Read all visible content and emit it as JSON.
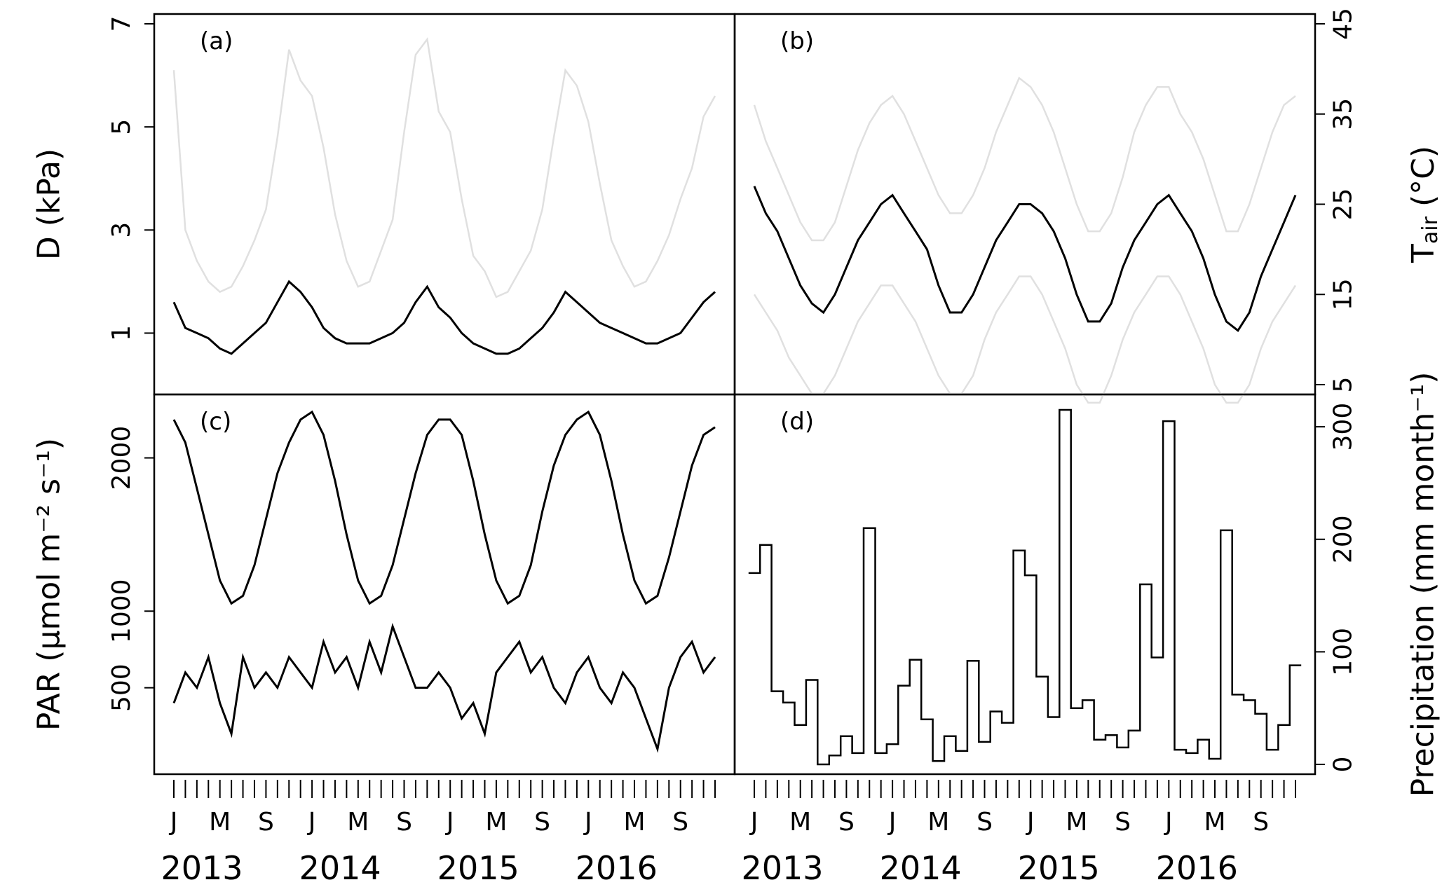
{
  "chart_data": [
    {
      "panel": "a",
      "type": "line",
      "panel_label": "(a)",
      "ylabel": "D (kPa)",
      "ylim": [
        0,
        7
      ],
      "yticks": [
        1,
        3,
        5,
        7
      ],
      "xlim": [
        "2013-01",
        "2016-12"
      ],
      "series": [
        {
          "role": "daily",
          "color": "#e0e0e0",
          "x": [
            "2013-01",
            "2013-02",
            "2013-03",
            "2013-04",
            "2013-05",
            "2013-06",
            "2013-07",
            "2013-08",
            "2013-09",
            "2013-10",
            "2013-11",
            "2013-12",
            "2014-01",
            "2014-02",
            "2014-03",
            "2014-04",
            "2014-05",
            "2014-06",
            "2014-07",
            "2014-08",
            "2014-09",
            "2014-10",
            "2014-11",
            "2014-12",
            "2015-01",
            "2015-02",
            "2015-03",
            "2015-04",
            "2015-05",
            "2015-06",
            "2015-07",
            "2015-08",
            "2015-09",
            "2015-10",
            "2015-11",
            "2015-12",
            "2016-01",
            "2016-02",
            "2016-03",
            "2016-04",
            "2016-05",
            "2016-06",
            "2016-07",
            "2016-08",
            "2016-09",
            "2016-10",
            "2016-11",
            "2016-12"
          ],
          "y": [
            6.1,
            3.0,
            2.4,
            2.0,
            1.8,
            1.9,
            2.3,
            2.8,
            3.4,
            4.8,
            6.5,
            5.9,
            5.6,
            4.6,
            3.3,
            2.4,
            1.9,
            2.0,
            2.6,
            3.2,
            4.9,
            6.4,
            6.7,
            5.3,
            4.9,
            3.6,
            2.5,
            2.2,
            1.7,
            1.8,
            2.2,
            2.6,
            3.4,
            4.8,
            6.1,
            5.8,
            5.1,
            3.9,
            2.8,
            2.3,
            1.9,
            2.0,
            2.4,
            2.9,
            3.6,
            4.2,
            5.2,
            5.6
          ]
        },
        {
          "role": "smoothed",
          "color": "#000000",
          "x": [
            "2013-01",
            "2013-02",
            "2013-03",
            "2013-04",
            "2013-05",
            "2013-06",
            "2013-07",
            "2013-08",
            "2013-09",
            "2013-10",
            "2013-11",
            "2013-12",
            "2014-01",
            "2014-02",
            "2014-03",
            "2014-04",
            "2014-05",
            "2014-06",
            "2014-07",
            "2014-08",
            "2014-09",
            "2014-10",
            "2014-11",
            "2014-12",
            "2015-01",
            "2015-02",
            "2015-03",
            "2015-04",
            "2015-05",
            "2015-06",
            "2015-07",
            "2015-08",
            "2015-09",
            "2015-10",
            "2015-11",
            "2015-12",
            "2016-01",
            "2016-02",
            "2016-03",
            "2016-04",
            "2016-05",
            "2016-06",
            "2016-07",
            "2016-08",
            "2016-09",
            "2016-10",
            "2016-11",
            "2016-12"
          ],
          "y": [
            1.6,
            1.1,
            1.0,
            0.9,
            0.7,
            0.6,
            0.8,
            1.0,
            1.2,
            1.6,
            2.0,
            1.8,
            1.5,
            1.1,
            0.9,
            0.8,
            0.8,
            0.8,
            0.9,
            1.0,
            1.2,
            1.6,
            1.9,
            1.5,
            1.3,
            1.0,
            0.8,
            0.7,
            0.6,
            0.6,
            0.7,
            0.9,
            1.1,
            1.4,
            1.8,
            1.6,
            1.4,
            1.2,
            1.1,
            1.0,
            0.9,
            0.8,
            0.8,
            0.9,
            1.0,
            1.3,
            1.6,
            1.8
          ]
        }
      ]
    },
    {
      "panel": "b",
      "type": "line",
      "panel_label": "(b)",
      "ylabel": "T",
      "ylabel_sub": "air",
      "ylabel_unit": " (°C)",
      "ylim": [
        5,
        45
      ],
      "yticks": [
        5,
        15,
        25,
        35,
        45
      ],
      "xlim": [
        "2013-01",
        "2016-12"
      ],
      "series": [
        {
          "role": "daily_max",
          "color": "#e0e0e0",
          "x": [
            "2013-01",
            "2013-02",
            "2013-03",
            "2013-04",
            "2013-05",
            "2013-06",
            "2013-07",
            "2013-08",
            "2013-09",
            "2013-10",
            "2013-11",
            "2013-12",
            "2014-01",
            "2014-02",
            "2014-03",
            "2014-04",
            "2014-05",
            "2014-06",
            "2014-07",
            "2014-08",
            "2014-09",
            "2014-10",
            "2014-11",
            "2014-12",
            "2015-01",
            "2015-02",
            "2015-03",
            "2015-04",
            "2015-05",
            "2015-06",
            "2015-07",
            "2015-08",
            "2015-09",
            "2015-10",
            "2015-11",
            "2015-12",
            "2016-01",
            "2016-02",
            "2016-03",
            "2016-04",
            "2016-05",
            "2016-06",
            "2016-07",
            "2016-08",
            "2016-09",
            "2016-10",
            "2016-11",
            "2016-12"
          ],
          "y": [
            36,
            32,
            29,
            26,
            23,
            21,
            21,
            23,
            27,
            31,
            34,
            36,
            37,
            35,
            32,
            29,
            26,
            24,
            24,
            26,
            29,
            33,
            36,
            39,
            38,
            36,
            33,
            29,
            25,
            22,
            22,
            24,
            28,
            33,
            36,
            38,
            38,
            35,
            33,
            30,
            26,
            22,
            22,
            25,
            29,
            33,
            36,
            37
          ]
        },
        {
          "role": "daily_min",
          "color": "#e0e0e0",
          "x": [
            "2013-01",
            "2013-02",
            "2013-03",
            "2013-04",
            "2013-05",
            "2013-06",
            "2013-07",
            "2013-08",
            "2013-09",
            "2013-10",
            "2013-11",
            "2013-12",
            "2014-01",
            "2014-02",
            "2014-03",
            "2014-04",
            "2014-05",
            "2014-06",
            "2014-07",
            "2014-08",
            "2014-09",
            "2014-10",
            "2014-11",
            "2014-12",
            "2015-01",
            "2015-02",
            "2015-03",
            "2015-04",
            "2015-05",
            "2015-06",
            "2015-07",
            "2015-08",
            "2015-09",
            "2015-10",
            "2015-11",
            "2015-12",
            "2016-01",
            "2016-02",
            "2016-03",
            "2016-04",
            "2016-05",
            "2016-06",
            "2016-07",
            "2016-08",
            "2016-09",
            "2016-10",
            "2016-11",
            "2016-12"
          ],
          "y": [
            15,
            13,
            11,
            8,
            6,
            4,
            4,
            6,
            9,
            12,
            14,
            16,
            16,
            14,
            12,
            9,
            6,
            4,
            4,
            6,
            10,
            13,
            15,
            17,
            17,
            15,
            12,
            9,
            5,
            3,
            3,
            6,
            10,
            13,
            15,
            17,
            17,
            15,
            12,
            9,
            5,
            3,
            3,
            5,
            9,
            12,
            14,
            16
          ]
        },
        {
          "role": "daily_mean",
          "color": "#000000",
          "x": [
            "2013-01",
            "2013-02",
            "2013-03",
            "2013-04",
            "2013-05",
            "2013-06",
            "2013-07",
            "2013-08",
            "2013-09",
            "2013-10",
            "2013-11",
            "2013-12",
            "2014-01",
            "2014-02",
            "2014-03",
            "2014-04",
            "2014-05",
            "2014-06",
            "2014-07",
            "2014-08",
            "2014-09",
            "2014-10",
            "2014-11",
            "2014-12",
            "2015-01",
            "2015-02",
            "2015-03",
            "2015-04",
            "2015-05",
            "2015-06",
            "2015-07",
            "2015-08",
            "2015-09",
            "2015-10",
            "2015-11",
            "2015-12",
            "2016-01",
            "2016-02",
            "2016-03",
            "2016-04",
            "2016-05",
            "2016-06",
            "2016-07",
            "2016-08",
            "2016-09",
            "2016-10",
            "2016-11",
            "2016-12"
          ],
          "y": [
            27,
            24,
            22,
            19,
            16,
            14,
            13,
            15,
            18,
            21,
            23,
            25,
            26,
            24,
            22,
            20,
            16,
            13,
            13,
            15,
            18,
            21,
            23,
            25,
            25,
            24,
            22,
            19,
            15,
            12,
            12,
            14,
            18,
            21,
            23,
            25,
            26,
            24,
            22,
            19,
            15,
            12,
            11,
            13,
            17,
            20,
            23,
            26
          ]
        }
      ]
    },
    {
      "panel": "c",
      "type": "line",
      "panel_label": "(c)",
      "ylabel_main": "PAR (",
      "ylabel_unit": "μmol m⁻² s⁻¹)",
      "ylim": [
        0,
        2350
      ],
      "yticks": [
        500,
        1000,
        2000
      ],
      "xlim": [
        "2013-01",
        "2016-12"
      ],
      "series": [
        {
          "role": "daily_envelope",
          "color": "#000000",
          "x": [
            "2013-01",
            "2013-02",
            "2013-03",
            "2013-04",
            "2013-05",
            "2013-06",
            "2013-07",
            "2013-08",
            "2013-09",
            "2013-10",
            "2013-11",
            "2013-12",
            "2014-01",
            "2014-02",
            "2014-03",
            "2014-04",
            "2014-05",
            "2014-06",
            "2014-07",
            "2014-08",
            "2014-09",
            "2014-10",
            "2014-11",
            "2014-12",
            "2015-01",
            "2015-02",
            "2015-03",
            "2015-04",
            "2015-05",
            "2015-06",
            "2015-07",
            "2015-08",
            "2015-09",
            "2015-10",
            "2015-11",
            "2015-12",
            "2016-01",
            "2016-02",
            "2016-03",
            "2016-04",
            "2016-05",
            "2016-06",
            "2016-07",
            "2016-08",
            "2016-09",
            "2016-10",
            "2016-11",
            "2016-12"
          ],
          "y": [
            2250,
            2100,
            1800,
            1500,
            1200,
            1050,
            1100,
            1300,
            1600,
            1900,
            2100,
            2250,
            2300,
            2150,
            1850,
            1500,
            1200,
            1050,
            1100,
            1300,
            1600,
            1900,
            2150,
            2250,
            2250,
            2150,
            1850,
            1500,
            1200,
            1050,
            1100,
            1300,
            1650,
            1950,
            2150,
            2250,
            2300,
            2150,
            1850,
            1500,
            1200,
            1050,
            1100,
            1350,
            1650,
            1950,
            2150,
            2200
          ]
        },
        {
          "role": "cloudy_minima",
          "color": "#000000",
          "x": [
            "2013-01",
            "2013-02",
            "2013-03",
            "2013-04",
            "2013-05",
            "2013-06",
            "2013-07",
            "2013-08",
            "2013-09",
            "2013-10",
            "2013-11",
            "2013-12",
            "2014-01",
            "2014-02",
            "2014-03",
            "2014-04",
            "2014-05",
            "2014-06",
            "2014-07",
            "2014-08",
            "2014-09",
            "2014-10",
            "2014-11",
            "2014-12",
            "2015-01",
            "2015-02",
            "2015-03",
            "2015-04",
            "2015-05",
            "2015-06",
            "2015-07",
            "2015-08",
            "2015-09",
            "2015-10",
            "2015-11",
            "2015-12",
            "2016-01",
            "2016-02",
            "2016-03",
            "2016-04",
            "2016-05",
            "2016-06",
            "2016-07",
            "2016-08",
            "2016-09",
            "2016-10",
            "2016-11",
            "2016-12"
          ],
          "y": [
            400,
            600,
            500,
            700,
            400,
            200,
            700,
            500,
            600,
            500,
            700,
            600,
            500,
            800,
            600,
            700,
            500,
            800,
            600,
            900,
            700,
            500,
            500,
            600,
            500,
            300,
            400,
            200,
            600,
            700,
            800,
            600,
            700,
            500,
            400,
            600,
            700,
            500,
            400,
            600,
            500,
            300,
            100,
            500,
            700,
            800,
            600,
            700
          ]
        }
      ]
    },
    {
      "panel": "d",
      "type": "step",
      "panel_label": "(d)",
      "ylabel_main": "Precipitation (",
      "ylabel_unit": "mm month⁻¹)",
      "ylim": [
        0,
        320
      ],
      "yticks": [
        0,
        100,
        200,
        300
      ],
      "xlim": [
        "2013-01",
        "2016-12"
      ],
      "series": [
        {
          "role": "monthly",
          "color": "#000000",
          "x": [
            "2013-01",
            "2013-02",
            "2013-03",
            "2013-04",
            "2013-05",
            "2013-06",
            "2013-07",
            "2013-08",
            "2013-09",
            "2013-10",
            "2013-11",
            "2013-12",
            "2014-01",
            "2014-02",
            "2014-03",
            "2014-04",
            "2014-05",
            "2014-06",
            "2014-07",
            "2014-08",
            "2014-09",
            "2014-10",
            "2014-11",
            "2014-12",
            "2015-01",
            "2015-02",
            "2015-03",
            "2015-04",
            "2015-05",
            "2015-06",
            "2015-07",
            "2015-08",
            "2015-09",
            "2015-10",
            "2015-11",
            "2015-12",
            "2016-01",
            "2016-02",
            "2016-03",
            "2016-04",
            "2016-05",
            "2016-06",
            "2016-07",
            "2016-08",
            "2016-09",
            "2016-10",
            "2016-11",
            "2016-12"
          ],
          "y": [
            170,
            195,
            65,
            55,
            35,
            75,
            0,
            8,
            25,
            10,
            210,
            10,
            18,
            70,
            93,
            40,
            3,
            25,
            12,
            92,
            20,
            47,
            37,
            190,
            168,
            78,
            42,
            315,
            50,
            57,
            22,
            26,
            15,
            30,
            160,
            95,
            305,
            13,
            10,
            22,
            5,
            208,
            62,
            57,
            45,
            13,
            35,
            88
          ]
        }
      ]
    }
  ],
  "x_axis": {
    "month_labels": [
      "J",
      "M",
      "S"
    ],
    "years": [
      "2013",
      "2014",
      "2015",
      "2016"
    ]
  }
}
